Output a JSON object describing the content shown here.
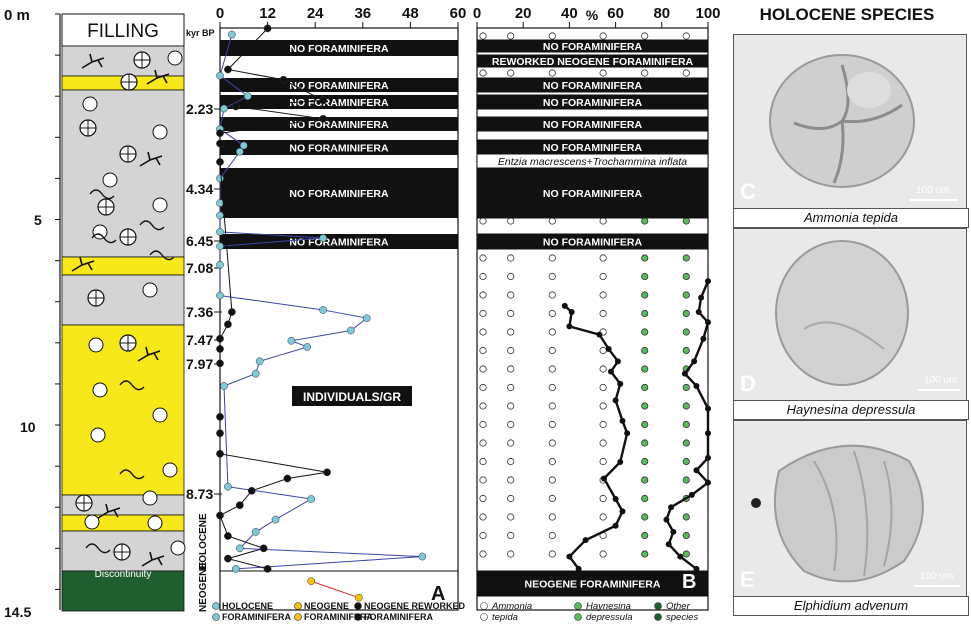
{
  "depth_axis": {
    "labels": [
      "0 m",
      "5",
      "10",
      "14.5"
    ],
    "values": [
      0,
      5,
      10,
      14.5
    ]
  },
  "lithology": {
    "header": "FILLING",
    "discontinuity": "Discontinuity",
    "era_labels": [
      "HOLOCENE",
      "NEOGENE"
    ]
  },
  "age_labels": {
    "unit": "kyr BP",
    "items": [
      {
        "label": "2.23",
        "depth": 2.23
      },
      {
        "label": "4.34",
        "depth": 4.34
      },
      {
        "label": "6.45",
        "depth": 6.45
      },
      {
        "label": "7.08",
        "depth": 7.08
      },
      {
        "label": "7.36",
        "depth": 7.36
      },
      {
        "label": "7.47",
        "depth": 7.47
      },
      {
        "label": "7.97",
        "depth": 7.97
      },
      {
        "label": "8.73",
        "depth": 8.73
      }
    ]
  },
  "panel_a": {
    "letter": "A",
    "ticks": [
      "0",
      "12",
      "24",
      "36",
      "48",
      "60"
    ],
    "no_foram_label": "NO FORAMINIFERA",
    "center_label": "INDIVIDUALS/GR",
    "legend": [
      {
        "line1": "HOLOCENE",
        "line2": "FORAMINIFERA",
        "color": "#7fc8d8"
      },
      {
        "line1": "NEOGENE",
        "line2": "FORAMINIFERA",
        "color": "#f2c218"
      },
      {
        "line1": "NEOGENE REWORKED",
        "line2": "FORAMINIFERA",
        "color": "#111111"
      }
    ]
  },
  "panel_b": {
    "letter": "B",
    "ticks": [
      "0",
      "20",
      "40",
      "60",
      "80",
      "100"
    ],
    "unit": "%",
    "no_foram_label": "NO FORAMINIFERA",
    "reworked_label": "REWORKED NEOGENE FORAMINIFERA",
    "species_label": "Entzia macrescens+Trochammina inflata",
    "neogene_label": "NEOGENE FORAMINIFERA",
    "legend": [
      {
        "line1": "Ammonia",
        "line2": "tepida",
        "color": "#ffffff"
      },
      {
        "line1": "Haynesina",
        "line2": "depressula",
        "color": "#5cb85c"
      },
      {
        "line1": "Other",
        "line2": "species",
        "color": "#1f5e2e"
      }
    ]
  },
  "photos": {
    "header": "HOLOCENE SPECIES",
    "scale": "100 um",
    "items": [
      {
        "letter": "C",
        "caption": "Ammonia tepida"
      },
      {
        "letter": "D",
        "caption": "Haynesina depressula"
      },
      {
        "letter": "E",
        "caption": "Elphidium advenum"
      }
    ]
  },
  "chart_data": {
    "type": "line",
    "y_axis": "depth (m)",
    "ylim": [
      0,
      14.5
    ],
    "panel_a_xlim": [
      0,
      60
    ],
    "panel_b_xlim": [
      0,
      100
    ],
    "panel_a_series": [
      {
        "name": "HOLOCENE FORAMINIFERA",
        "color": "#7fc8d8",
        "points": [
          [
            3,
            0.5
          ],
          [
            0,
            1.5
          ],
          [
            7,
            2.0
          ],
          [
            1,
            2.3
          ],
          [
            0,
            2.8
          ],
          [
            6,
            3.2
          ],
          [
            5,
            3.35
          ],
          [
            0,
            4.0
          ],
          [
            0,
            4.6
          ],
          [
            0,
            4.9
          ],
          [
            0,
            5.3
          ],
          [
            26,
            5.45
          ],
          [
            0,
            5.65
          ],
          [
            0,
            6.1
          ],
          [
            0,
            6.85
          ],
          [
            26,
            7.2
          ],
          [
            37,
            7.4
          ],
          [
            33,
            7.7
          ],
          [
            18,
            7.95
          ],
          [
            22,
            8.1
          ],
          [
            10,
            8.45
          ],
          [
            9,
            8.75
          ],
          [
            1,
            9.05
          ],
          [
            2,
            11.5
          ],
          [
            23,
            11.8
          ],
          [
            14,
            12.3
          ],
          [
            9,
            12.6
          ],
          [
            5,
            13.0
          ],
          [
            51,
            13.2
          ],
          [
            4,
            13.5
          ]
        ]
      },
      {
        "name": "NEOGENE FORAMINIFERA",
        "color": "#f2c218",
        "points": [
          [
            23,
            13.8
          ],
          [
            35,
            14.2
          ]
        ]
      },
      {
        "name": "NEOGENE REWORKED FORAMINIFERA",
        "color": "#111111",
        "points": [
          [
            12,
            0.35
          ],
          [
            2,
            1.35
          ],
          [
            16,
            1.6
          ],
          [
            26,
            2.1
          ],
          [
            4,
            2.25
          ],
          [
            26,
            2.55
          ],
          [
            0,
            2.9
          ],
          [
            0,
            3.15
          ],
          [
            0,
            3.6
          ],
          [
            3,
            7.25
          ],
          [
            2,
            7.55
          ],
          [
            0,
            7.9
          ],
          [
            0,
            8.15
          ],
          [
            0,
            8.5
          ],
          [
            0,
            9.8
          ],
          [
            0,
            10.2
          ],
          [
            0,
            10.7
          ],
          [
            27,
            11.15
          ],
          [
            17,
            11.3
          ],
          [
            8,
            11.6
          ],
          [
            5,
            11.95
          ],
          [
            0,
            12.2
          ],
          [
            2,
            12.7
          ],
          [
            11,
            13.0
          ],
          [
            2,
            13.25
          ],
          [
            12,
            13.5
          ]
        ]
      }
    ],
    "panel_b_series": {
      "name": "cumulative %",
      "points": [
        [
          100,
          6.5
        ],
        [
          97,
          6.9
        ],
        [
          96,
          7.25
        ],
        [
          100,
          7.5
        ],
        [
          98,
          7.9
        ],
        [
          94,
          8.45
        ],
        [
          90,
          8.75
        ],
        [
          95,
          9.05
        ],
        [
          100,
          9.6
        ],
        [
          100,
          10.2
        ],
        [
          100,
          10.8
        ],
        [
          95,
          11.1
        ],
        [
          100,
          11.4
        ],
        [
          93,
          11.7
        ],
        [
          84,
          12.0
        ],
        [
          82,
          12.3
        ],
        [
          85,
          12.6
        ],
        [
          83,
          12.9
        ],
        [
          88,
          13.2
        ],
        [
          95,
          13.5
        ]
      ]
    },
    "panel_b_series2": {
      "name": "Ammonia tepida %",
      "points": [
        [
          38,
          7.1
        ],
        [
          41,
          7.25
        ],
        [
          40,
          7.6
        ],
        [
          53,
          7.8
        ],
        [
          57,
          8.15
        ],
        [
          61,
          8.45
        ],
        [
          58,
          8.7
        ],
        [
          62,
          9.0
        ],
        [
          60,
          9.4
        ],
        [
          63,
          9.9
        ],
        [
          65,
          10.2
        ],
        [
          62,
          10.9
        ],
        [
          55,
          11.3
        ],
        [
          60,
          11.8
        ],
        [
          63,
          12.1
        ],
        [
          60,
          12.45
        ],
        [
          47,
          12.8
        ],
        [
          40,
          13.2
        ],
        [
          44,
          13.5
        ]
      ]
    }
  }
}
